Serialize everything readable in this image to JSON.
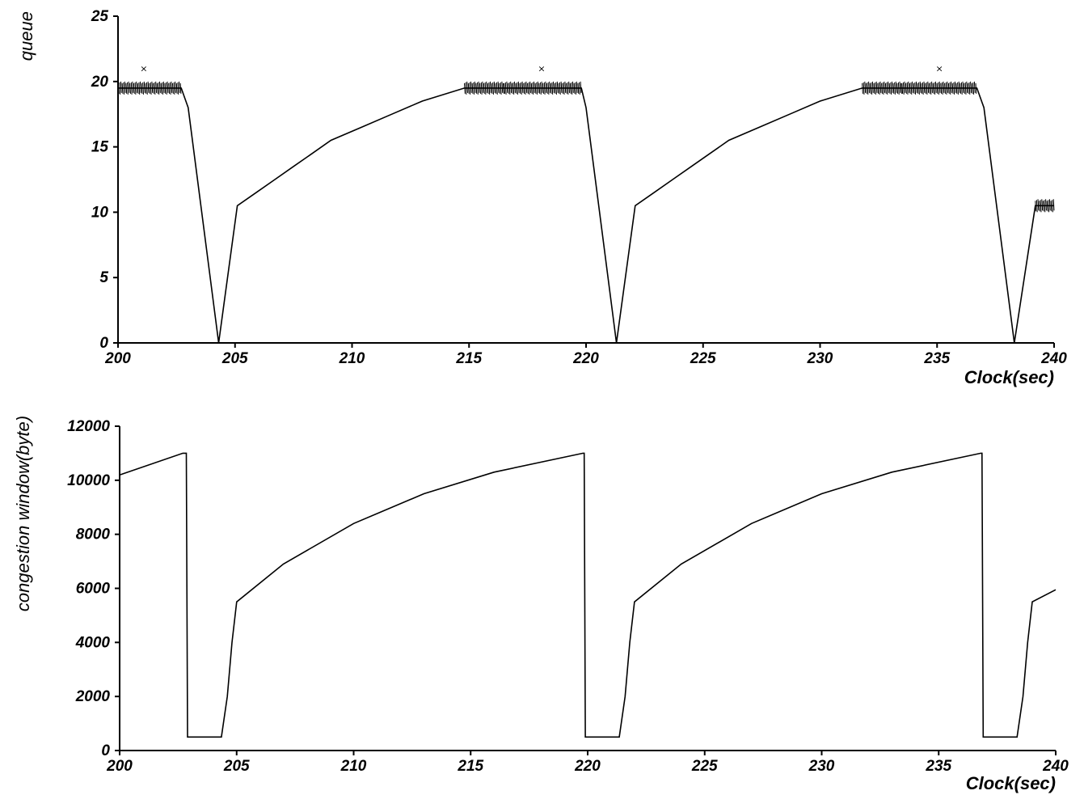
{
  "chart_data": [
    {
      "type": "line",
      "title": "",
      "xlabel": "Clock(sec)",
      "ylabel": "queue",
      "xlim": [
        200,
        240
      ],
      "ylim": [
        0,
        25
      ],
      "x_ticks": [
        200,
        205,
        210,
        215,
        220,
        225,
        230,
        235,
        240
      ],
      "y_ticks": [
        0,
        5,
        10,
        15,
        20,
        25
      ],
      "grid": false,
      "series": [
        {
          "x": [
            200,
            200.01,
            202.7,
            203.0,
            204.3,
            205.1,
            205.9,
            206.7,
            207.5,
            208.3,
            209.1,
            210.4,
            211.7,
            213.0,
            214.8,
            216.5,
            219.8,
            220.0,
            221.3,
            222.1,
            222.9,
            223.7,
            224.5,
            225.3,
            226.1,
            227.4,
            228.7,
            230.0,
            231.8,
            233.5,
            236.7,
            237.0,
            238.3,
            239.2,
            240
          ],
          "y": [
            19.5,
            19.5,
            19.5,
            18.0,
            0.0,
            10.5,
            11.5,
            12.5,
            13.5,
            14.5,
            15.5,
            16.5,
            17.5,
            18.5,
            19.5,
            19.5,
            19.5,
            18.0,
            0.0,
            10.5,
            11.5,
            12.5,
            13.5,
            14.5,
            15.5,
            16.5,
            17.5,
            18.5,
            19.5,
            19.5,
            19.5,
            18.0,
            0.0,
            10.5,
            10.5
          ]
        }
      ],
      "annotations": [
        {
          "text": "×",
          "x": 201.1,
          "y": 21
        },
        {
          "text": "×",
          "x": 218.1,
          "y": 21
        },
        {
          "text": "×",
          "x": 235.1,
          "y": 21
        }
      ]
    },
    {
      "type": "line",
      "title": "",
      "xlabel": "Clock(sec)",
      "ylabel": "congestion window(byte)",
      "xlim": [
        200,
        240
      ],
      "ylim": [
        0,
        12000
      ],
      "x_ticks": [
        200,
        205,
        210,
        215,
        220,
        225,
        230,
        235,
        240
      ],
      "y_ticks": [
        0,
        2000,
        4000,
        6000,
        8000,
        10000,
        12000
      ],
      "grid": false,
      "series": [
        {
          "x": [
            200,
            202.7,
            202.85,
            202.9,
            204.35,
            204.6,
            204.8,
            205.0,
            207.0,
            210.0,
            213.0,
            216.0,
            219.8,
            219.85,
            219.9,
            221.35,
            221.6,
            221.8,
            222.0,
            224.0,
            227.0,
            230.0,
            233.0,
            236.8,
            236.85,
            236.9,
            238.35,
            238.6,
            238.8,
            239.0,
            240
          ],
          "y": [
            10200,
            11000,
            11000,
            500,
            500,
            2000,
            4000,
            5500,
            6900,
            8400,
            9500,
            10300,
            11000,
            11000,
            500,
            500,
            2000,
            4000,
            5500,
            6900,
            8400,
            9500,
            10300,
            11000,
            11000,
            500,
            500,
            2000,
            4000,
            5500,
            5950
          ]
        }
      ]
    }
  ]
}
